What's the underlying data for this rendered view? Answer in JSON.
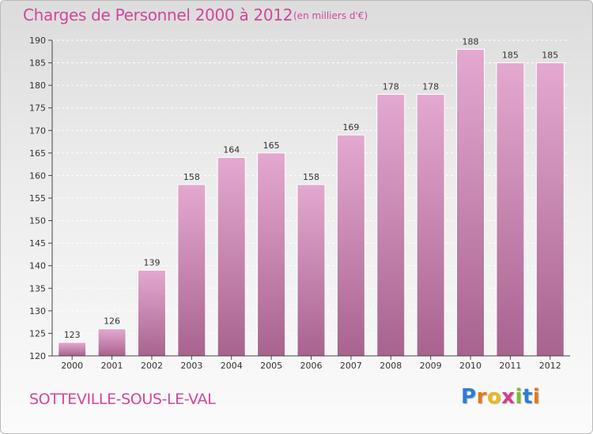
{
  "header": {
    "title": "Charges de Personnel 2000 à 2012",
    "unit_note": "(en milliers d'€)"
  },
  "footer": {
    "commune_name": "SOTTEVILLE-SOUS-LE-VAL",
    "logo_letters": [
      "P",
      "r",
      "o",
      "x",
      "i",
      "t",
      "i"
    ],
    "logo_colors": [
      "#2b7fd1",
      "#e07a1e",
      "#e8b91a",
      "#d83a8c",
      "#7cbf2a",
      "#2b7fd1",
      "#e07a1e"
    ]
  },
  "colors": {
    "title": "#d0479b",
    "bar_top": "#e4a9d0",
    "bar_bottom": "#a8638f",
    "axis": "#444444"
  },
  "chart_data": {
    "type": "bar",
    "title": "Charges de Personnel 2000 à 2012",
    "xlabel": "",
    "ylabel": "",
    "categories": [
      "2000",
      "2001",
      "2002",
      "2003",
      "2004",
      "2005",
      "2006",
      "2007",
      "2008",
      "2009",
      "2010",
      "2011",
      "2012"
    ],
    "values": [
      123,
      126,
      139,
      158,
      164,
      165,
      158,
      169,
      178,
      178,
      188,
      185,
      185
    ],
    "ylim": [
      120,
      190
    ],
    "yticks": [
      120,
      125,
      130,
      135,
      140,
      145,
      150,
      155,
      160,
      165,
      170,
      175,
      180,
      185,
      190
    ],
    "grid": true,
    "data_labels": true
  }
}
